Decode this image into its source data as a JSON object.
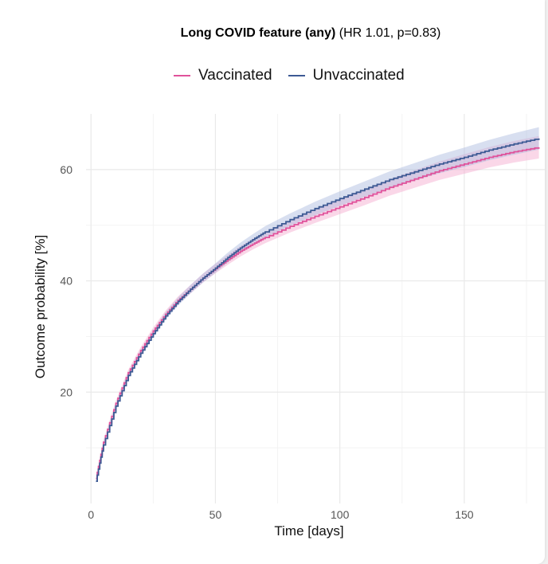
{
  "chart_data": {
    "type": "line",
    "title_bold": "Long COVID feature (any)",
    "title_rest": "(HR 1.01, p=0.83)",
    "xlabel": "Time [days]",
    "ylabel": "Outcome probability [%]",
    "xlim": [
      -2,
      183
    ],
    "ylim": [
      0,
      70
    ],
    "xticks": [
      0,
      50,
      100,
      150
    ],
    "yticks": [
      20,
      40,
      60
    ],
    "grid": true,
    "legend_position": "top",
    "series": [
      {
        "name": "Vaccinated",
        "color": "#e0529b",
        "band_color": "#f4a6cc",
        "x": [
          2,
          5,
          10,
          15,
          20,
          25,
          30,
          35,
          40,
          45,
          50,
          55,
          60,
          65,
          70,
          80,
          90,
          100,
          110,
          120,
          130,
          140,
          150,
          160,
          170,
          180
        ],
        "y": [
          4.5,
          11,
          18,
          23.5,
          27.5,
          31,
          34,
          36.5,
          38.5,
          40.5,
          42.2,
          43.8,
          45.3,
          46.6,
          47.8,
          49.8,
          51.6,
          53.3,
          55,
          56.8,
          58.3,
          59.8,
          61,
          62.2,
          63.2,
          64
        ]
      },
      {
        "name": "Unvaccinated",
        "color": "#3d5a94",
        "band_color": "#a9b8dd",
        "x": [
          2,
          5,
          10,
          15,
          20,
          25,
          30,
          35,
          40,
          45,
          50,
          55,
          60,
          65,
          70,
          80,
          90,
          100,
          110,
          120,
          130,
          140,
          150,
          160,
          170,
          180
        ],
        "y": [
          4,
          10.5,
          17.5,
          23,
          27,
          30.5,
          33.7,
          36.3,
          38.5,
          40.5,
          42.3,
          44.2,
          45.9,
          47.4,
          48.8,
          51,
          53,
          54.8,
          56.5,
          58.2,
          59.6,
          61,
          62.2,
          63.5,
          64.6,
          65.6
        ]
      }
    ]
  }
}
